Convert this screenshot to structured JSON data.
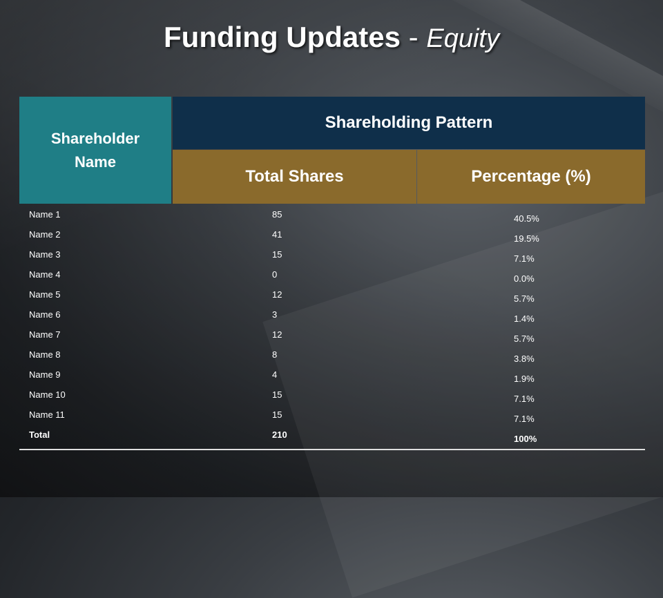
{
  "title": {
    "main": "Funding Updates",
    "separator": "-",
    "sub": "Equity"
  },
  "table": {
    "header_name": "Shareholder Name",
    "header_group": "Shareholding Pattern",
    "header_shares": "Total Shares",
    "header_percentage": "Percentage (%)",
    "rows": [
      {
        "name": "Name 1",
        "shares": "85",
        "percentage": "40.5%"
      },
      {
        "name": "Name 2",
        "shares": "41",
        "percentage": "19.5%"
      },
      {
        "name": "Name 3",
        "shares": "15",
        "percentage": "7.1%"
      },
      {
        "name": "Name 4",
        "shares": "0",
        "percentage": "0.0%"
      },
      {
        "name": "Name 5",
        "shares": "12",
        "percentage": "5.7%"
      },
      {
        "name": "Name 6",
        "shares": "3",
        "percentage": "1.4%"
      },
      {
        "name": "Name 7",
        "shares": "12",
        "percentage": "5.7%"
      },
      {
        "name": "Name 8",
        "shares": "8",
        "percentage": "3.8%"
      },
      {
        "name": "Name 9",
        "shares": "4",
        "percentage": "1.9%"
      },
      {
        "name": "Name 10",
        "shares": "15",
        "percentage": "7.1%"
      },
      {
        "name": "Name 11",
        "shares": "15",
        "percentage": "7.1%"
      }
    ],
    "total": {
      "name": "Total",
      "shares": "210",
      "percentage": "100%"
    }
  },
  "colors": {
    "name_header": "#1f7e86",
    "pattern_header": "#0f2f4a",
    "subheader": "#8a6a2c"
  }
}
